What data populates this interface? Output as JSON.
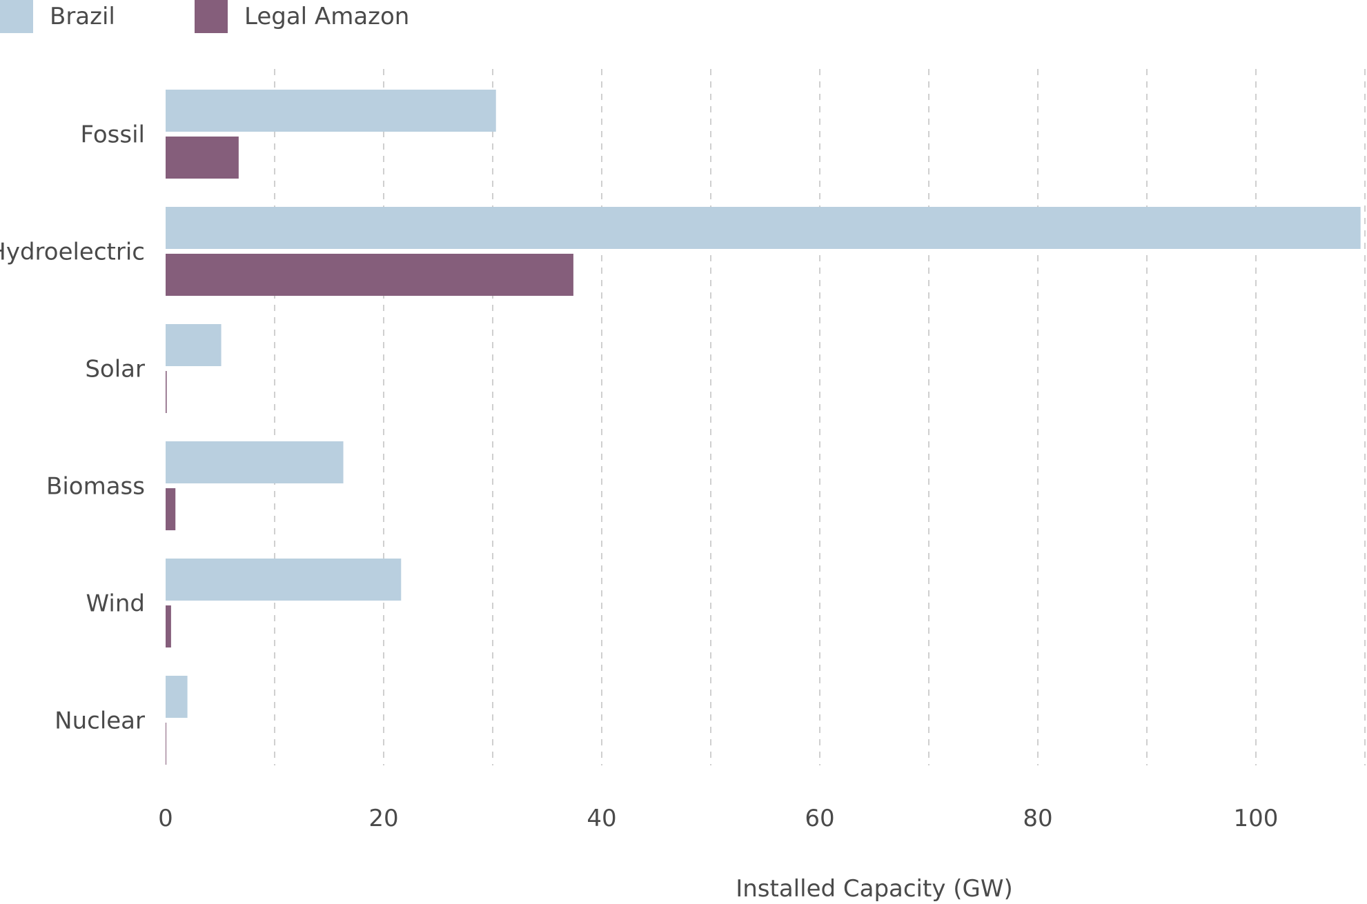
{
  "legend": {
    "items": [
      {
        "label": "Brazil",
        "color": "#b9cfdf"
      },
      {
        "label": "Legal Amazon",
        "color": "#855e7b"
      }
    ]
  },
  "chart_data": {
    "type": "bar",
    "orientation": "horizontal",
    "categories": [
      "Fossil",
      "Hydroelectric",
      "Solar",
      "Biomass",
      "Wind",
      "Nuclear"
    ],
    "series": [
      {
        "name": "Brazil",
        "color": "#b9cfdf",
        "values": [
          30.3,
          109.6,
          5.1,
          16.3,
          21.6,
          2.0
        ]
      },
      {
        "name": "Legal Amazon",
        "color": "#855e7b",
        "values": [
          6.7,
          37.4,
          0.1,
          0.9,
          0.5,
          0.05
        ]
      }
    ],
    "x_ticks": [
      "0",
      "20",
      "40",
      "60",
      "80",
      "100"
    ],
    "xlim": [
      0,
      110
    ],
    "xlabel": "Installed Capacity (GW)",
    "ylabel": "",
    "grid": {
      "x": true,
      "style": "dashed",
      "step": 10
    },
    "legend_position": "top-left"
  }
}
